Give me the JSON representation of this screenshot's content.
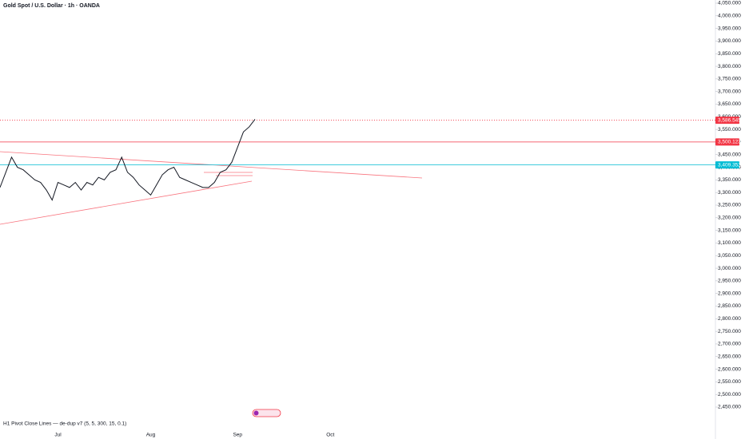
{
  "chart_data": {
    "type": "line",
    "title": "Gold Spot / U.S. Dollar · 1h · OANDA",
    "indicator_label": "H1 Pivot Close Lines — de-dup v7 (5, 5, 300, 15, 0.1)",
    "categories": [
      null,
      null,
      null,
      null,
      null,
      null,
      null,
      null,
      null,
      null,
      "Jul",
      null,
      null,
      null,
      null,
      null,
      null,
      null,
      null,
      null,
      null,
      null,
      null,
      null,
      null,
      null,
      "Aug",
      null,
      null,
      null,
      null,
      null,
      null,
      null,
      null,
      null,
      null,
      null,
      null,
      null,
      null,
      "Sep",
      null,
      null,
      null,
      null,
      null,
      null,
      null,
      null,
      null,
      null,
      null,
      null,
      null,
      null,
      null,
      "Oct"
    ],
    "values": [
      3320,
      3380,
      3440,
      3400,
      3390,
      3370,
      3350,
      3340,
      3310,
      3270,
      3340,
      3330,
      3320,
      3340,
      3310,
      3340,
      3330,
      3360,
      3350,
      3380,
      3390,
      3440,
      3380,
      3360,
      3330,
      3310,
      3290,
      3330,
      3370,
      3390,
      3400,
      3360,
      3350,
      3340,
      3330,
      3320,
      3320,
      3340,
      3380,
      3390,
      3420,
      3480,
      3540,
      3560,
      3590,
      null,
      null,
      null,
      null,
      null,
      null,
      null,
      null,
      null,
      null,
      null,
      null,
      null
    ],
    "color": "#131722",
    "ylim": [
      2450,
      4050
    ],
    "yticks": [
      {
        "value": 2450,
        "label": "2,450.000"
      },
      {
        "value": 2500,
        "label": "2,500.000"
      },
      {
        "value": 2550,
        "label": "2,550.000"
      },
      {
        "value": 2600,
        "label": "2,600.000"
      },
      {
        "value": 2650,
        "label": "2,650.000"
      },
      {
        "value": 2700,
        "label": "2,700.000"
      },
      {
        "value": 2750,
        "label": "2,750.000"
      },
      {
        "value": 2800,
        "label": "2,800.000"
      },
      {
        "value": 2850,
        "label": "2,850.000"
      },
      {
        "value": 2900,
        "label": "2,900.000"
      },
      {
        "value": 2950,
        "label": "2,950.000"
      },
      {
        "value": 3000,
        "label": "3,000.000"
      },
      {
        "value": 3050,
        "label": "3,050.000"
      },
      {
        "value": 3100,
        "label": "3,100.000"
      },
      {
        "value": 3150,
        "label": "3,150.000"
      },
      {
        "value": 3200,
        "label": "3,200.000"
      },
      {
        "value": 3250,
        "label": "3,250.000"
      },
      {
        "value": 3300,
        "label": "3,300.000"
      },
      {
        "value": 3350,
        "label": "3,350.000"
      },
      {
        "value": 3400,
        "label": "3,400.000"
      },
      {
        "value": 3450,
        "label": "3,450.000"
      },
      {
        "value": 3500,
        "label": "3,500.000"
      },
      {
        "value": 3550,
        "label": "3,550.000"
      },
      {
        "value": 3600,
        "label": "3,600.000"
      },
      {
        "value": 3650,
        "label": "3,650.000"
      },
      {
        "value": 3700,
        "label": "3,700.000"
      },
      {
        "value": 3750,
        "label": "3,750.000"
      },
      {
        "value": 3800,
        "label": "3,800.000"
      },
      {
        "value": 3850,
        "label": "3,850.000"
      },
      {
        "value": 3900,
        "label": "3,900.000"
      },
      {
        "value": 3950,
        "label": "3,950.000"
      },
      {
        "value": 4000,
        "label": "4,000.000"
      },
      {
        "value": 4050,
        "label": "4,050.000"
      }
    ],
    "price_lines": [
      {
        "value": 3586.545,
        "label": "3,586.545",
        "color": "#f23645"
      },
      {
        "value": 3500.123,
        "label": "3,500.123",
        "color": "#f23645"
      },
      {
        "value": 3409.352,
        "label": "3,409.352",
        "color": "#00bcd4"
      }
    ]
  }
}
